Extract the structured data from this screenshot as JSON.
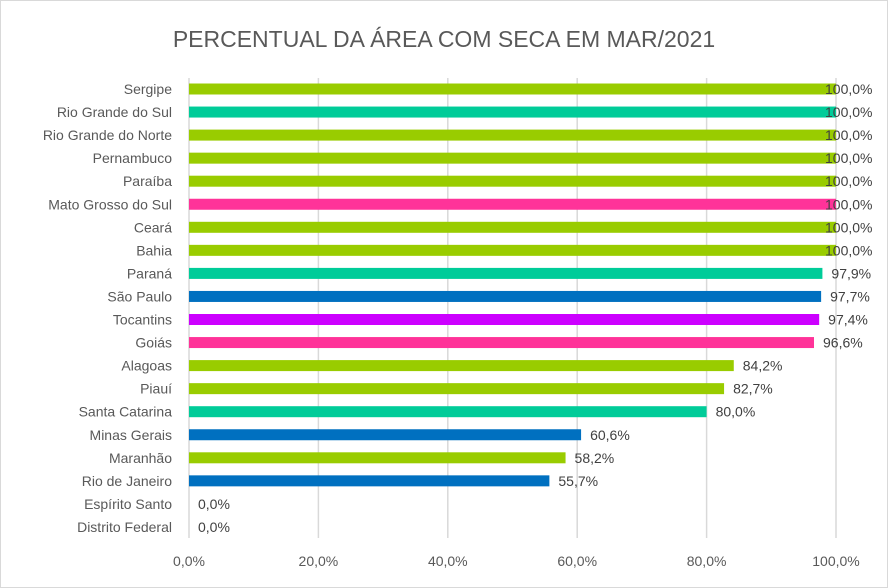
{
  "chart_data": {
    "type": "bar",
    "orientation": "horizontal",
    "title": "PERCENTUAL DA ÁREA COM SECA EM MAR/2021",
    "xlabel": "",
    "ylabel": "",
    "xlim": [
      0,
      100
    ],
    "grid": true,
    "legend": "none",
    "x_ticks": [
      "0,0%",
      "20,0%",
      "40,0%",
      "60,0%",
      "80,0%",
      "100,0%"
    ],
    "x_tick_values": [
      0,
      20,
      40,
      60,
      80,
      100
    ],
    "categories": [
      "Sergipe",
      "Rio Grande do Sul",
      "Rio Grande do Norte",
      "Pernambuco",
      "Paraíba",
      "Mato Grosso do Sul",
      "Ceará",
      "Bahia",
      "Paraná",
      "São Paulo",
      "Tocantins",
      "Goiás",
      "Alagoas",
      "Piauí",
      "Santa Catarina",
      "Minas Gerais",
      "Maranhão",
      "Rio de Janeiro",
      "Espírito Santo",
      "Distrito Federal"
    ],
    "values": [
      100.0,
      100.0,
      100.0,
      100.0,
      100.0,
      100.0,
      100.0,
      100.0,
      97.9,
      97.7,
      97.4,
      96.6,
      84.2,
      82.7,
      80.0,
      60.6,
      58.2,
      55.7,
      0.0,
      0.0
    ],
    "data_labels": [
      "100,0%",
      "100,0%",
      "100,0%",
      "100,0%",
      "100,0%",
      "100,0%",
      "100,0%",
      "100,0%",
      "97,9%",
      "97,7%",
      "97,4%",
      "96,6%",
      "84,2%",
      "82,7%",
      "80,0%",
      "60,6%",
      "58,2%",
      "55,7%",
      "0,0%",
      "0,0%"
    ],
    "colors": [
      "#99cc00",
      "#00cc99",
      "#99cc00",
      "#99cc00",
      "#99cc00",
      "#ff3399",
      "#99cc00",
      "#99cc00",
      "#00cc99",
      "#0070c0",
      "#cc00ff",
      "#ff3399",
      "#99cc00",
      "#99cc00",
      "#00cc99",
      "#0070c0",
      "#99cc00",
      "#0070c0",
      "#99cc00",
      "#99cc00"
    ]
  }
}
